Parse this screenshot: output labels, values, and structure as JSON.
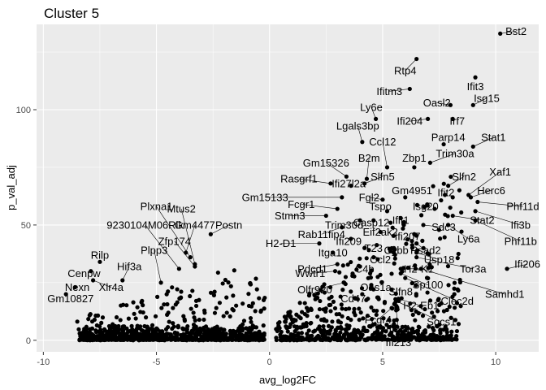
{
  "chart_data": {
    "type": "scatter",
    "title": "Cluster 5",
    "xlabel": "avg_log2FC",
    "ylabel": "p_val_adj",
    "xlim": [
      -10.3,
      11.9
    ],
    "ylim": [
      -5,
      137
    ],
    "xticks": [
      -10,
      -5,
      0,
      5,
      10
    ],
    "yticks": [
      0,
      50,
      100
    ],
    "grid": true,
    "colors": {
      "panel": "#ebebeb",
      "grid_major": "#ffffff",
      "point": "#000000",
      "leader": "#000000"
    },
    "labeled_points": [
      {
        "label": "Bst2",
        "x": 10.2,
        "y": 133,
        "lx": 10.9,
        "ly": 134
      },
      {
        "label": "Rtp4",
        "x": 6.5,
        "y": 122,
        "lx": 6.0,
        "ly": 117
      },
      {
        "label": "Ifitm3",
        "x": 6.2,
        "y": 109,
        "lx": 5.3,
        "ly": 108
      },
      {
        "label": "Ifit3",
        "x": 9.1,
        "y": 114,
        "lx": 9.1,
        "ly": 110
      },
      {
        "label": "Isg15",
        "x": 9.0,
        "y": 102,
        "lx": 9.6,
        "ly": 105
      },
      {
        "label": "Oasl2",
        "x": 8.0,
        "y": 102,
        "lx": 7.4,
        "ly": 103
      },
      {
        "label": "Ly6e",
        "x": 4.7,
        "y": 96,
        "lx": 4.5,
        "ly": 101
      },
      {
        "label": "Irf7",
        "x": 8.1,
        "y": 96,
        "lx": 8.3,
        "ly": 95
      },
      {
        "label": "Ifi204",
        "x": 7.0,
        "y": 96,
        "lx": 6.2,
        "ly": 95
      },
      {
        "label": "Lgals3bp",
        "x": 4.1,
        "y": 86,
        "lx": 3.9,
        "ly": 93
      },
      {
        "label": "Stat1",
        "x": 9.0,
        "y": 84,
        "lx": 9.9,
        "ly": 88
      },
      {
        "label": "Parp14",
        "x": 7.7,
        "y": 85,
        "lx": 7.9,
        "ly": 88
      },
      {
        "label": "Ccl12",
        "x": 5.2,
        "y": 75,
        "lx": 5.0,
        "ly": 86
      },
      {
        "label": "Trim30a",
        "x": 7.1,
        "y": 77,
        "lx": 8.2,
        "ly": 81
      },
      {
        "label": "B2m",
        "x": 4.3,
        "y": 70,
        "lx": 4.4,
        "ly": 79
      },
      {
        "label": "Gm15326",
        "x": 3.4,
        "y": 71,
        "lx": 2.5,
        "ly": 77
      },
      {
        "label": "Zbp1",
        "x": 6.4,
        "y": 75,
        "lx": 6.4,
        "ly": 79
      },
      {
        "label": "Slfn5",
        "x": 4.2,
        "y": 68,
        "lx": 5.0,
        "ly": 71
      },
      {
        "label": "Ifi27l2a",
        "x": 3.6,
        "y": 67,
        "lx": 3.5,
        "ly": 68
      },
      {
        "label": "Rasgrf1",
        "x": 2.7,
        "y": 68,
        "lx": 1.3,
        "ly": 70
      },
      {
        "label": "Slfn2",
        "x": 7.9,
        "y": 67,
        "lx": 8.6,
        "ly": 71
      },
      {
        "label": "Xaf1",
        "x": 8.8,
        "y": 63,
        "lx": 10.2,
        "ly": 73
      },
      {
        "label": "Gm4951",
        "x": 6.0,
        "y": 62,
        "lx": 6.3,
        "ly": 65
      },
      {
        "label": "Ifit2",
        "x": 8.1,
        "y": 62,
        "lx": 7.8,
        "ly": 64
      },
      {
        "label": "Herc6",
        "x": 8.9,
        "y": 62,
        "lx": 9.8,
        "ly": 65
      },
      {
        "label": "Fgl2",
        "x": 5.0,
        "y": 61,
        "lx": 4.4,
        "ly": 62
      },
      {
        "label": "Gm15133",
        "x": 3.2,
        "y": 62,
        "lx": -0.2,
        "ly": 62
      },
      {
        "label": "Fcgr1",
        "x": 3.0,
        "y": 57,
        "lx": 1.4,
        "ly": 59
      },
      {
        "label": "Isg20",
        "x": 7.3,
        "y": 57,
        "lx": 6.9,
        "ly": 58
      },
      {
        "label": "Phf11d",
        "x": 9.2,
        "y": 60,
        "lx": 11.2,
        "ly": 58
      },
      {
        "label": "Tspo",
        "x": 5.2,
        "y": 56,
        "lx": 4.9,
        "ly": 58
      },
      {
        "label": "Stat2",
        "x": 8.1,
        "y": 54,
        "lx": 9.4,
        "ly": 52
      },
      {
        "label": "Ifi3b",
        "x": 9.1,
        "y": 56,
        "lx": 11.1,
        "ly": 50
      },
      {
        "label": "Stmn3",
        "x": 2.5,
        "y": 54,
        "lx": 0.9,
        "ly": 54
      },
      {
        "label": "Trim30d",
        "x": 4.0,
        "y": 52,
        "lx": 3.3,
        "ly": 50
      },
      {
        "label": "Casp12",
        "x": 4.6,
        "y": 52,
        "lx": 4.5,
        "ly": 51
      },
      {
        "label": "Ifit1",
        "x": 5.8,
        "y": 53,
        "lx": 5.8,
        "ly": 52
      },
      {
        "label": "Sdc3",
        "x": 6.8,
        "y": 50,
        "lx": 7.7,
        "ly": 49
      },
      {
        "label": "Ly6a",
        "x": 7.9,
        "y": 50,
        "lx": 8.8,
        "ly": 44
      },
      {
        "label": "Phf11b",
        "x": 9.1,
        "y": 52,
        "lx": 11.1,
        "ly": 43
      },
      {
        "label": "Rab11fip4",
        "x": 3.2,
        "y": 49,
        "lx": 2.3,
        "ly": 46
      },
      {
        "label": "Eif2ak2",
        "x": 4.9,
        "y": 47,
        "lx": 4.9,
        "ly": 47
      },
      {
        "label": "Ifi207",
        "x": 6.4,
        "y": 46,
        "lx": 6.1,
        "ly": 45
      },
      {
        "label": "Rsad2",
        "x": 6.5,
        "y": 42,
        "lx": 6.9,
        "ly": 39
      },
      {
        "label": "H2-D1",
        "x": 2.2,
        "y": 42,
        "lx": 0.5,
        "ly": 42
      },
      {
        "label": "Ifi209",
        "x": 3.6,
        "y": 44,
        "lx": 3.5,
        "ly": 43
      },
      {
        "label": "T23",
        "x": 4.2,
        "y": 40,
        "lx": 4.6,
        "ly": 40
      },
      {
        "label": "Cybb",
        "x": 5.5,
        "y": 40,
        "lx": 5.6,
        "ly": 39
      },
      {
        "label": "Itga10",
        "x": 2.8,
        "y": 38,
        "lx": 2.8,
        "ly": 38
      },
      {
        "label": "Usp18",
        "x": 6.5,
        "y": 38,
        "lx": 7.5,
        "ly": 35
      },
      {
        "label": "Ccl2",
        "x": 4.6,
        "y": 36,
        "lx": 4.9,
        "ly": 35
      },
      {
        "label": "Tor3a",
        "x": 6.5,
        "y": 36,
        "lx": 9.0,
        "ly": 31
      },
      {
        "label": "Pdcd1",
        "x": 3.0,
        "y": 33,
        "lx": 1.9,
        "ly": 31
      },
      {
        "label": "C4b",
        "x": 4.0,
        "y": 32,
        "lx": 4.2,
        "ly": 31
      },
      {
        "label": "H2-K1",
        "x": 5.8,
        "y": 31,
        "lx": 6.6,
        "ly": 31
      },
      {
        "label": "Wwtr1",
        "x": 2.9,
        "y": 30,
        "lx": 1.8,
        "ly": 29
      },
      {
        "label": "Ifi206",
        "x": 10.5,
        "y": 31,
        "lx": 11.4,
        "ly": 33
      },
      {
        "label": "Sp100",
        "x": 5.8,
        "y": 29,
        "lx": 7.0,
        "ly": 24
      },
      {
        "label": "Samhd1",
        "x": 6.7,
        "y": 31,
        "lx": 10.4,
        "ly": 20
      },
      {
        "label": "Clec2d",
        "x": 6.0,
        "y": 27,
        "lx": 8.3,
        "ly": 17
      },
      {
        "label": "Oas1a",
        "x": 4.5,
        "y": 24,
        "lx": 4.7,
        "ly": 23
      },
      {
        "label": "Slfn8",
        "x": 5.4,
        "y": 22,
        "lx": 5.8,
        "ly": 21
      },
      {
        "label": "Olfr920",
        "x": 3.3,
        "y": 25,
        "lx": 2.0,
        "ly": 22
      },
      {
        "label": "Cd47",
        "x": 4.1,
        "y": 20,
        "lx": 3.7,
        "ly": 18
      },
      {
        "label": "H2-Eb1",
        "x": 5.7,
        "y": 18,
        "lx": 6.7,
        "ly": 15
      },
      {
        "label": "Socs1",
        "x": 5.6,
        "y": 17,
        "lx": 7.6,
        "ly": 8
      },
      {
        "label": "Fcgr4",
        "x": 5.4,
        "y": 14,
        "lx": 4.8,
        "ly": 9
      },
      {
        "label": "Ifi211",
        "x": 5.6,
        "y": 13,
        "lx": 5.7,
        "ly": 5
      },
      {
        "label": "Ifi213",
        "x": 5.5,
        "y": 7,
        "lx": 5.7,
        "ly": -1
      },
      {
        "label": "Postn",
        "x": -2.6,
        "y": 46,
        "lx": -1.8,
        "ly": 50
      },
      {
        "label": "Gm4477",
        "x": -3.7,
        "y": 38,
        "lx": -3.3,
        "ly": 50
      },
      {
        "label": "Mtus2",
        "x": -3.3,
        "y": 33,
        "lx": -3.9,
        "ly": 57
      },
      {
        "label": "9230104M06Rik",
        "x": -4.0,
        "y": 31,
        "lx": -5.5,
        "ly": 50
      },
      {
        "label": "Plxna1",
        "x": -3.5,
        "y": 36,
        "lx": -5.0,
        "ly": 58
      },
      {
        "label": "Zfp174",
        "x": -3.3,
        "y": 32,
        "lx": -4.2,
        "ly": 43
      },
      {
        "label": "Plpp3",
        "x": -4.8,
        "y": 25,
        "lx": -5.1,
        "ly": 39
      },
      {
        "label": "Rilp",
        "x": -7.5,
        "y": 34,
        "lx": -7.5,
        "ly": 37
      },
      {
        "label": "Hif3a",
        "x": -6.5,
        "y": 26,
        "lx": -6.2,
        "ly": 32
      },
      {
        "label": "Cenpw",
        "x": -7.9,
        "y": 30,
        "lx": -8.2,
        "ly": 29
      },
      {
        "label": "Xlr4a",
        "x": -7.8,
        "y": 26,
        "lx": -7.0,
        "ly": 23
      },
      {
        "label": "Nexn",
        "x": -8.6,
        "y": 23,
        "lx": -8.5,
        "ly": 23
      },
      {
        "label": "Gm10827",
        "x": -9.0,
        "y": 20,
        "lx": -8.8,
        "ly": 18
      }
    ]
  }
}
